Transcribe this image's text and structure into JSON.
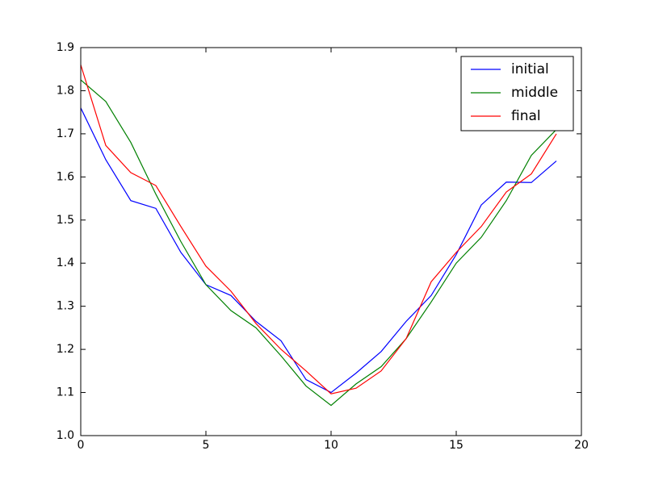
{
  "chart_data": {
    "type": "line",
    "x": [
      0,
      1,
      2,
      3,
      4,
      5,
      6,
      7,
      8,
      9,
      10,
      11,
      12,
      13,
      14,
      15,
      16,
      17,
      18,
      19
    ],
    "series": [
      {
        "name": "initial",
        "color": "#0000ff",
        "values": [
          1.76,
          1.64,
          1.545,
          1.527,
          1.425,
          1.35,
          1.325,
          1.265,
          1.22,
          1.13,
          1.1,
          1.145,
          1.195,
          1.265,
          1.325,
          1.42,
          1.535,
          1.588,
          1.587,
          1.637
        ]
      },
      {
        "name": "middle",
        "color": "#008000",
        "values": [
          1.825,
          1.775,
          1.68,
          1.56,
          1.45,
          1.35,
          1.29,
          1.25,
          1.185,
          1.115,
          1.07,
          1.12,
          1.16,
          1.225,
          1.31,
          1.4,
          1.46,
          1.545,
          1.65,
          1.71
        ]
      },
      {
        "name": "final",
        "color": "#ff0000",
        "values": [
          1.86,
          1.673,
          1.61,
          1.58,
          1.485,
          1.393,
          1.335,
          1.26,
          1.2,
          1.15,
          1.097,
          1.11,
          1.15,
          1.225,
          1.357,
          1.425,
          1.485,
          1.565,
          1.607,
          1.7
        ]
      }
    ],
    "xlim": [
      0,
      20
    ],
    "xticks": [
      0,
      5,
      10,
      15,
      20
    ],
    "ylim": [
      1.0,
      1.9
    ],
    "yticks": [
      {
        "value": 1,
        "label": "1.0"
      },
      1.1,
      1.2,
      1.3,
      1.4,
      1.5,
      1.6,
      1.7,
      1.8,
      1.9
    ],
    "grid": false,
    "legend": "upper right"
  }
}
